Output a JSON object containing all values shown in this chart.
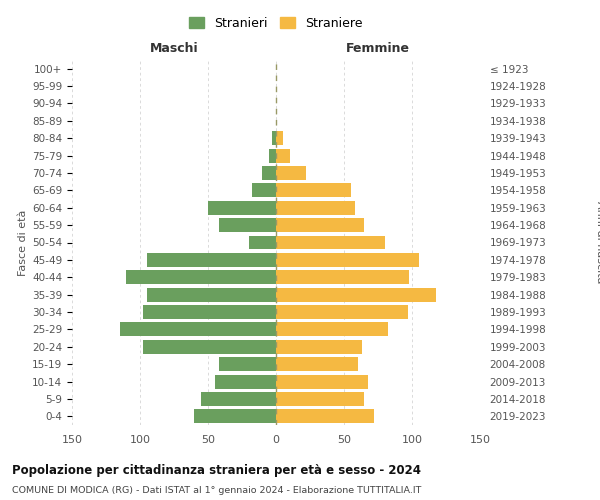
{
  "age_groups": [
    "0-4",
    "5-9",
    "10-14",
    "15-19",
    "20-24",
    "25-29",
    "30-34",
    "35-39",
    "40-44",
    "45-49",
    "50-54",
    "55-59",
    "60-64",
    "65-69",
    "70-74",
    "75-79",
    "80-84",
    "85-89",
    "90-94",
    "95-99",
    "100+"
  ],
  "birth_years": [
    "2019-2023",
    "2014-2018",
    "2009-2013",
    "2004-2008",
    "1999-2003",
    "1994-1998",
    "1989-1993",
    "1984-1988",
    "1979-1983",
    "1974-1978",
    "1969-1973",
    "1964-1968",
    "1959-1963",
    "1954-1958",
    "1949-1953",
    "1944-1948",
    "1939-1943",
    "1934-1938",
    "1929-1933",
    "1924-1928",
    "≤ 1923"
  ],
  "males": [
    60,
    55,
    45,
    42,
    98,
    115,
    98,
    95,
    110,
    95,
    20,
    42,
    50,
    18,
    10,
    5,
    3,
    0,
    0,
    0,
    0
  ],
  "females": [
    72,
    65,
    68,
    60,
    63,
    82,
    97,
    118,
    98,
    105,
    80,
    65,
    58,
    55,
    22,
    10,
    5,
    0,
    0,
    0,
    0
  ],
  "male_color": "#6a9f5e",
  "female_color": "#f5b942",
  "grid_color": "#cccccc",
  "title": "Popolazione per cittadinanza straniera per età e sesso - 2024",
  "subtitle": "COMUNE DI MODICA (RG) - Dati ISTAT al 1° gennaio 2024 - Elaborazione TUTTITALIA.IT",
  "legend_male": "Stranieri",
  "legend_female": "Straniere",
  "xlabel_left": "Maschi",
  "xlabel_right": "Femmine",
  "ylabel_left": "Fasce di età",
  "ylabel_right": "Anni di nascita",
  "xlim": 150,
  "bar_height": 0.8
}
